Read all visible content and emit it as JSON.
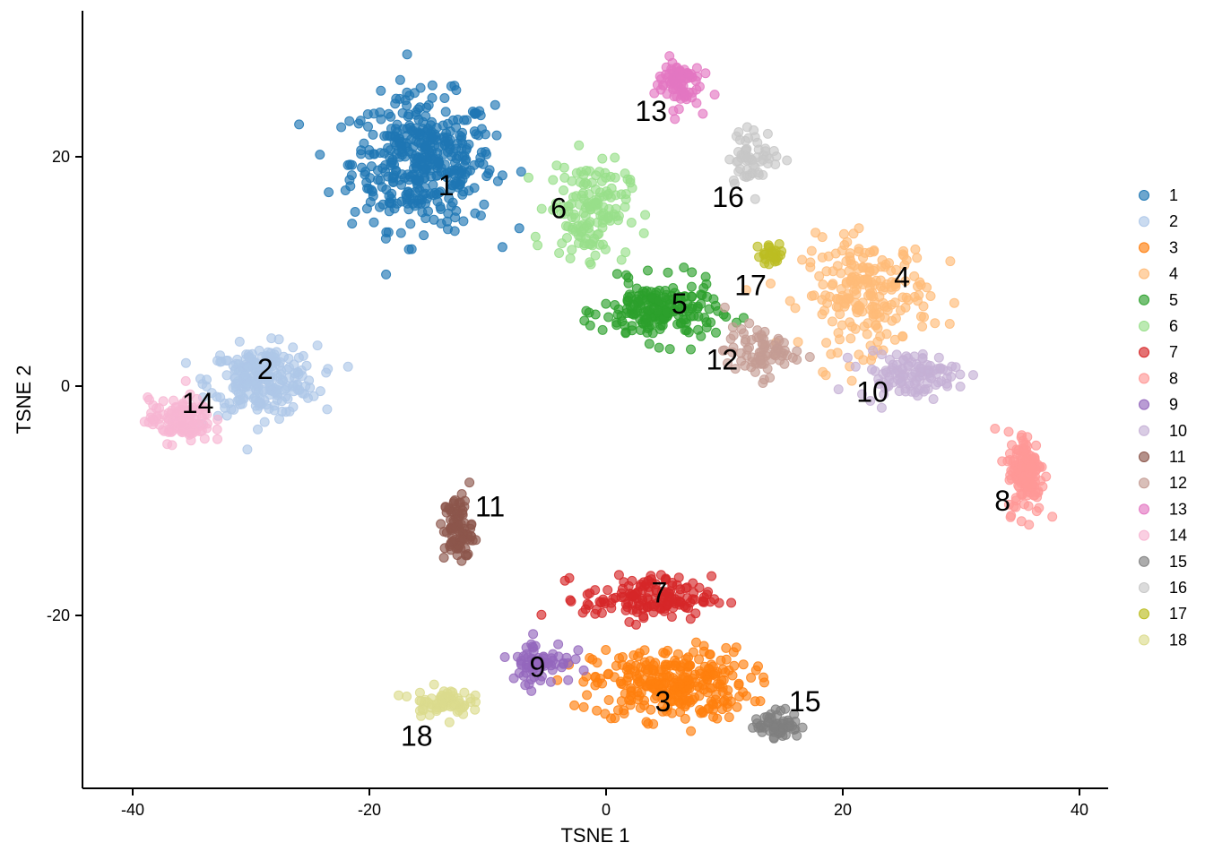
{
  "chart_data": {
    "type": "scatter",
    "title": "",
    "xlabel": "TSNE 1",
    "ylabel": "TSNE 2",
    "xlim": [
      -44,
      42
    ],
    "ylim": [
      -35,
      33
    ],
    "x_ticks": [
      -40,
      -20,
      0,
      20,
      40
    ],
    "y_ticks": [
      -20,
      0,
      20
    ],
    "x_tick_labels": [
      "-40",
      "-20",
      "0",
      "20",
      "40"
    ],
    "y_tick_labels": [
      "-20",
      "0",
      "20"
    ],
    "grid": false,
    "legend_position": "right",
    "clusters": [
      {
        "name": "1",
        "color": "#1f77b4",
        "center": [
          -15.5,
          19.5
        ],
        "spread": [
          5.0,
          4.8
        ],
        "count": 420,
        "label_pos": [
          -13.5,
          17.5
        ]
      },
      {
        "name": "2",
        "color": "#aec7e8",
        "center": [
          -29.0,
          0.5
        ],
        "spread": [
          3.8,
          2.5
        ],
        "count": 240,
        "label_pos": [
          -28.8,
          1.5
        ]
      },
      {
        "name": "3",
        "color": "#ff7f0e",
        "center": [
          5.5,
          -26.0
        ],
        "spread": [
          5.5,
          2.6
        ],
        "count": 300,
        "label_pos": [
          4.8,
          -27.5
        ]
      },
      {
        "name": "4",
        "color": "#ffbb78",
        "center": [
          22.0,
          8.0
        ],
        "spread": [
          4.5,
          4.0
        ],
        "count": 220,
        "label_pos": [
          25.0,
          9.5
        ]
      },
      {
        "name": "5",
        "color": "#2ca02c",
        "center": [
          4.5,
          6.5
        ],
        "spread": [
          4.0,
          2.2
        ],
        "count": 200,
        "label_pos": [
          6.2,
          7.2
        ]
      },
      {
        "name": "6",
        "color": "#98df8a",
        "center": [
          -1.5,
          15.5
        ],
        "spread": [
          2.8,
          3.5
        ],
        "count": 150,
        "label_pos": [
          -4.0,
          15.5
        ]
      },
      {
        "name": "7",
        "color": "#d62728",
        "center": [
          3.5,
          -18.5
        ],
        "spread": [
          4.5,
          1.6
        ],
        "count": 150,
        "label_pos": [
          4.5,
          -18.0
        ]
      },
      {
        "name": "8",
        "color": "#ff9896",
        "center": [
          35.5,
          -7.5
        ],
        "spread": [
          1.3,
          3.0
        ],
        "count": 140,
        "label_pos": [
          33.5,
          -10.0
        ]
      },
      {
        "name": "9",
        "color": "#9467bd",
        "center": [
          -5.5,
          -24.0
        ],
        "spread": [
          2.2,
          1.6
        ],
        "count": 70,
        "label_pos": [
          -5.8,
          -24.5
        ]
      },
      {
        "name": "10",
        "color": "#c5b0d5",
        "center": [
          25.5,
          1.0
        ],
        "spread": [
          3.5,
          1.6
        ],
        "count": 110,
        "label_pos": [
          22.5,
          -0.5
        ]
      },
      {
        "name": "11",
        "color": "#8c564b",
        "center": [
          -12.5,
          -12.5
        ],
        "spread": [
          1.0,
          2.5
        ],
        "count": 90,
        "label_pos": [
          -9.8,
          -10.5
        ]
      },
      {
        "name": "12",
        "color": "#c49c94",
        "center": [
          13.0,
          3.0
        ],
        "spread": [
          2.5,
          1.8
        ],
        "count": 80,
        "label_pos": [
          9.8,
          2.3
        ]
      },
      {
        "name": "13",
        "color": "#e377c2",
        "center": [
          6.0,
          26.5
        ],
        "spread": [
          1.6,
          1.8
        ],
        "count": 80,
        "label_pos": [
          3.8,
          24.0
        ]
      },
      {
        "name": "14",
        "color": "#f7b6d2",
        "center": [
          -36.0,
          -3.0
        ],
        "spread": [
          2.2,
          1.6
        ],
        "count": 120,
        "label_pos": [
          -34.5,
          -1.5
        ]
      },
      {
        "name": "15",
        "color": "#7f7f7f",
        "center": [
          14.5,
          -29.5
        ],
        "spread": [
          1.6,
          1.0
        ],
        "count": 60,
        "label_pos": [
          16.8,
          -27.5
        ]
      },
      {
        "name": "16",
        "color": "#c7c7c7",
        "center": [
          12.5,
          20.0
        ],
        "spread": [
          1.8,
          2.0
        ],
        "count": 60,
        "label_pos": [
          10.3,
          16.5
        ]
      },
      {
        "name": "17",
        "color": "#bcbd22",
        "center": [
          14.0,
          11.5
        ],
        "spread": [
          1.0,
          0.8
        ],
        "count": 25,
        "label_pos": [
          12.2,
          8.8
        ]
      },
      {
        "name": "18",
        "color": "#dbdb8d",
        "center": [
          -14.0,
          -27.5
        ],
        "spread": [
          2.0,
          1.0
        ],
        "count": 70,
        "label_pos": [
          -16.0,
          -30.5
        ]
      }
    ]
  }
}
